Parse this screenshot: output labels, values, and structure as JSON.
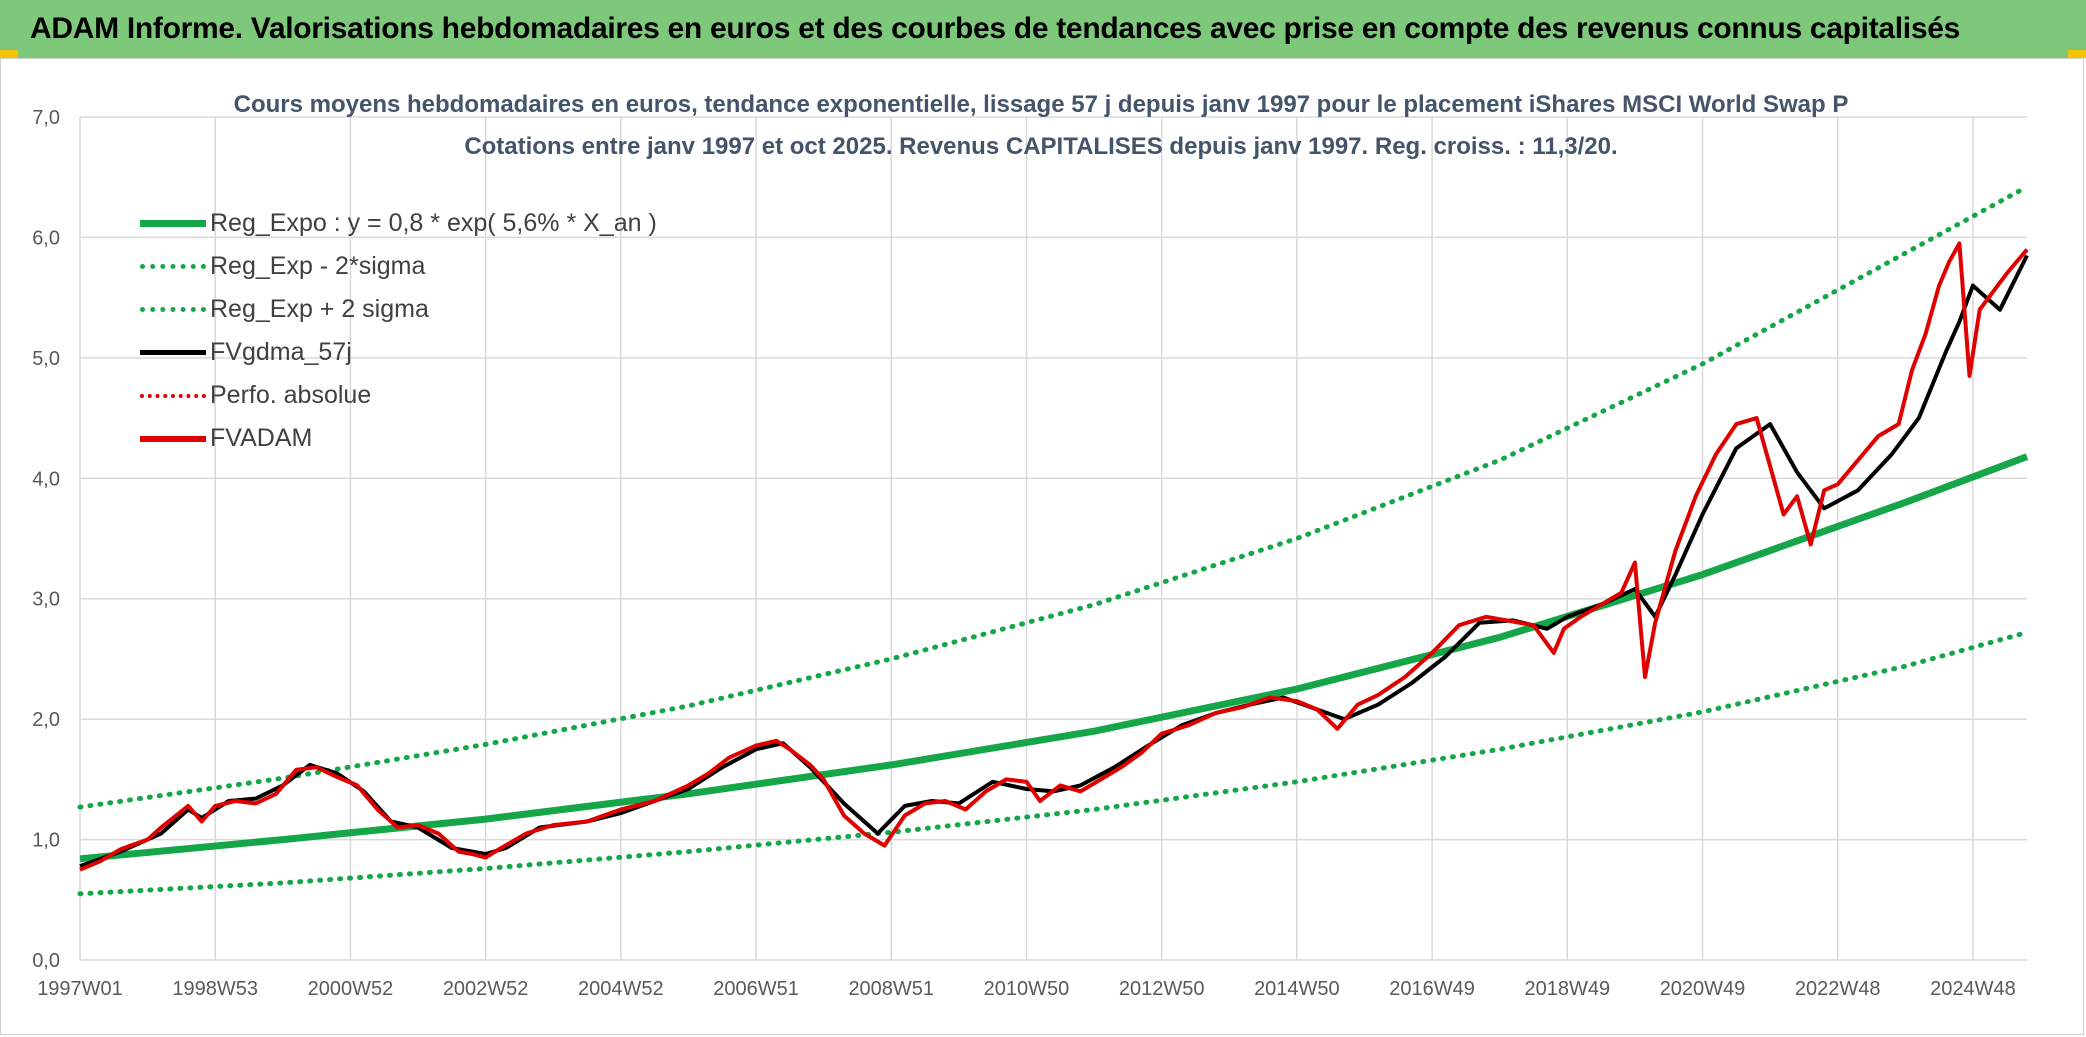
{
  "header": {
    "title": "ADAM Informe. Valorisations hebdomadaires en euros et des courbes de tendances avec prise en compte des revenus connus capitalisés"
  },
  "chart_data": {
    "type": "line",
    "title": "Cours moyens hebdomadaires en euros, tendance exponentielle, lissage 57 j depuis janv 1997 pour le placement iShares MSCI World Swap P",
    "subtitle": "Cotations entre janv 1997 et oct 2025. Revenus CAPITALISES depuis janv 1997. Reg. croiss. : 11,3/20.",
    "xlabel": "",
    "ylabel": "",
    "ylim": [
      0,
      7
    ],
    "xlim": [
      1997.0,
      2025.8
    ],
    "y_ticks": [
      "0,0",
      "1,0",
      "2,0",
      "3,0",
      "4,0",
      "5,0",
      "6,0",
      "7,0"
    ],
    "x_tick_labels": [
      "1997W01",
      "1998W53",
      "2000W52",
      "2002W52",
      "2004W52",
      "2006W51",
      "2008W51",
      "2010W50",
      "2012W50",
      "2014W50",
      "2016W49",
      "2018W49",
      "2020W49",
      "2022W48",
      "2024W48"
    ],
    "x_tick_positions": [
      1997.0,
      1999.0,
      2001.0,
      2003.0,
      2005.0,
      2007.0,
      2009.0,
      2011.0,
      2013.0,
      2015.0,
      2017.0,
      2019.0,
      2021.0,
      2023.0,
      2025.0
    ],
    "grid": true,
    "legend_position": "top-left",
    "series": [
      {
        "name": "Reg_Expo : y = 0,8 * exp( 5,6% *  X_an )",
        "style": "solid",
        "color": "#16a64a",
        "x": [
          1997.0,
          2000.0,
          2003.0,
          2006.0,
          2009.0,
          2012.0,
          2015.0,
          2018.0,
          2021.0,
          2024.0,
          2025.8
        ],
        "y": [
          0.84,
          1.0,
          1.17,
          1.38,
          1.62,
          1.9,
          2.25,
          2.68,
          3.2,
          3.8,
          4.18
        ]
      },
      {
        "name": "Reg_Exp - 2*sigma",
        "style": "dotted",
        "color": "#16a64a",
        "x": [
          1997.0,
          2000.0,
          2003.0,
          2006.0,
          2009.0,
          2012.0,
          2015.0,
          2018.0,
          2021.0,
          2024.0,
          2025.8
        ],
        "y": [
          0.55,
          0.64,
          0.76,
          0.9,
          1.06,
          1.25,
          1.48,
          1.75,
          2.06,
          2.44,
          2.72
        ]
      },
      {
        "name": "Reg_Exp + 2 sigma",
        "style": "dotted",
        "color": "#16a64a",
        "x": [
          1997.0,
          2000.0,
          2003.0,
          2006.0,
          2009.0,
          2012.0,
          2015.0,
          2018.0,
          2021.0,
          2024.0,
          2025.8
        ],
        "y": [
          1.27,
          1.51,
          1.79,
          2.11,
          2.5,
          2.95,
          3.5,
          4.15,
          4.95,
          5.87,
          6.42
        ]
      },
      {
        "name": "FVgdma_57j",
        "style": "solid",
        "color": "#000000",
        "x": [
          1997.0,
          1997.6,
          1998.2,
          1998.6,
          1998.8,
          1999.2,
          1999.6,
          2000.0,
          2000.4,
          2000.8,
          2001.2,
          2001.6,
          2002.0,
          2002.5,
          2003.0,
          2003.3,
          2003.8,
          2004.5,
          2005.0,
          2005.5,
          2006.0,
          2006.5,
          2007.0,
          2007.4,
          2007.8,
          2008.3,
          2008.8,
          2009.2,
          2009.6,
          2010.0,
          2010.5,
          2011.0,
          2011.4,
          2011.8,
          2012.3,
          2012.8,
          2013.3,
          2013.8,
          2014.3,
          2014.8,
          2015.2,
          2015.7,
          2016.2,
          2016.7,
          2017.2,
          2017.7,
          2018.2,
          2018.7,
          2019.0,
          2019.5,
          2020.0,
          2020.3,
          2020.6,
          2021.0,
          2021.5,
          2022.0,
          2022.4,
          2022.8,
          2023.3,
          2023.8,
          2024.2,
          2024.6,
          2024.8,
          2025.0,
          2025.4,
          2025.8
        ],
        "y": [
          0.78,
          0.9,
          1.05,
          1.25,
          1.18,
          1.32,
          1.34,
          1.45,
          1.62,
          1.55,
          1.4,
          1.15,
          1.1,
          0.93,
          0.88,
          0.93,
          1.1,
          1.15,
          1.22,
          1.32,
          1.42,
          1.6,
          1.75,
          1.8,
          1.6,
          1.3,
          1.05,
          1.28,
          1.32,
          1.3,
          1.48,
          1.42,
          1.4,
          1.45,
          1.6,
          1.78,
          1.95,
          2.05,
          2.12,
          2.18,
          2.1,
          2.0,
          2.12,
          2.3,
          2.52,
          2.8,
          2.82,
          2.75,
          2.85,
          2.95,
          3.08,
          2.85,
          3.2,
          3.7,
          4.25,
          4.45,
          4.05,
          3.75,
          3.9,
          4.2,
          4.5,
          5.05,
          5.3,
          5.6,
          5.4,
          5.85
        ]
      },
      {
        "name": "Perfo. absolue",
        "style": "dotted",
        "color": "#e00000",
        "x": [],
        "y": []
      },
      {
        "name": "FVADAM",
        "style": "solid",
        "color": "#e00000",
        "x": [
          1997.0,
          1997.3,
          1997.6,
          1998.0,
          1998.2,
          1998.6,
          1998.8,
          1999.0,
          1999.3,
          1999.6,
          1999.9,
          2000.2,
          2000.5,
          2000.8,
          2001.1,
          2001.4,
          2001.7,
          2002.0,
          2002.3,
          2002.6,
          2002.8,
          2003.0,
          2003.2,
          2003.6,
          2004.0,
          2004.5,
          2005.0,
          2005.5,
          2006.0,
          2006.3,
          2006.6,
          2007.0,
          2007.3,
          2007.5,
          2007.8,
          2008.0,
          2008.3,
          2008.6,
          2008.9,
          2009.2,
          2009.5,
          2009.8,
          2010.1,
          2010.4,
          2010.7,
          2011.0,
          2011.2,
          2011.5,
          2011.8,
          2012.1,
          2012.4,
          2012.7,
          2013.0,
          2013.4,
          2013.8,
          2014.2,
          2014.6,
          2015.0,
          2015.3,
          2015.6,
          2015.9,
          2016.2,
          2016.6,
          2017.0,
          2017.4,
          2017.8,
          2018.1,
          2018.5,
          2018.8,
          2018.95,
          2019.2,
          2019.5,
          2019.8,
          2020.0,
          2020.15,
          2020.3,
          2020.6,
          2020.9,
          2021.2,
          2021.5,
          2021.8,
          2022.0,
          2022.2,
          2022.4,
          2022.6,
          2022.8,
          2023.0,
          2023.3,
          2023.6,
          2023.9,
          2024.1,
          2024.3,
          2024.5,
          2024.65,
          2024.8,
          2024.95,
          2025.1,
          2025.3,
          2025.5,
          2025.8
        ],
        "y": [
          0.75,
          0.82,
          0.92,
          1.0,
          1.1,
          1.28,
          1.15,
          1.28,
          1.32,
          1.3,
          1.38,
          1.58,
          1.6,
          1.52,
          1.45,
          1.25,
          1.1,
          1.12,
          1.05,
          0.9,
          0.88,
          0.85,
          0.92,
          1.05,
          1.12,
          1.15,
          1.25,
          1.32,
          1.45,
          1.55,
          1.68,
          1.78,
          1.82,
          1.75,
          1.62,
          1.5,
          1.2,
          1.05,
          0.95,
          1.2,
          1.3,
          1.32,
          1.25,
          1.4,
          1.5,
          1.48,
          1.32,
          1.45,
          1.4,
          1.5,
          1.6,
          1.72,
          1.88,
          1.95,
          2.05,
          2.1,
          2.18,
          2.15,
          2.08,
          1.92,
          2.12,
          2.2,
          2.35,
          2.55,
          2.78,
          2.85,
          2.82,
          2.78,
          2.55,
          2.75,
          2.85,
          2.95,
          3.05,
          3.3,
          2.35,
          2.8,
          3.4,
          3.85,
          4.2,
          4.45,
          4.5,
          4.1,
          3.7,
          3.85,
          3.45,
          3.9,
          3.95,
          4.15,
          4.35,
          4.45,
          4.9,
          5.2,
          5.6,
          5.8,
          5.95,
          4.85,
          5.4,
          5.55,
          5.7,
          5.9
        ]
      }
    ]
  }
}
